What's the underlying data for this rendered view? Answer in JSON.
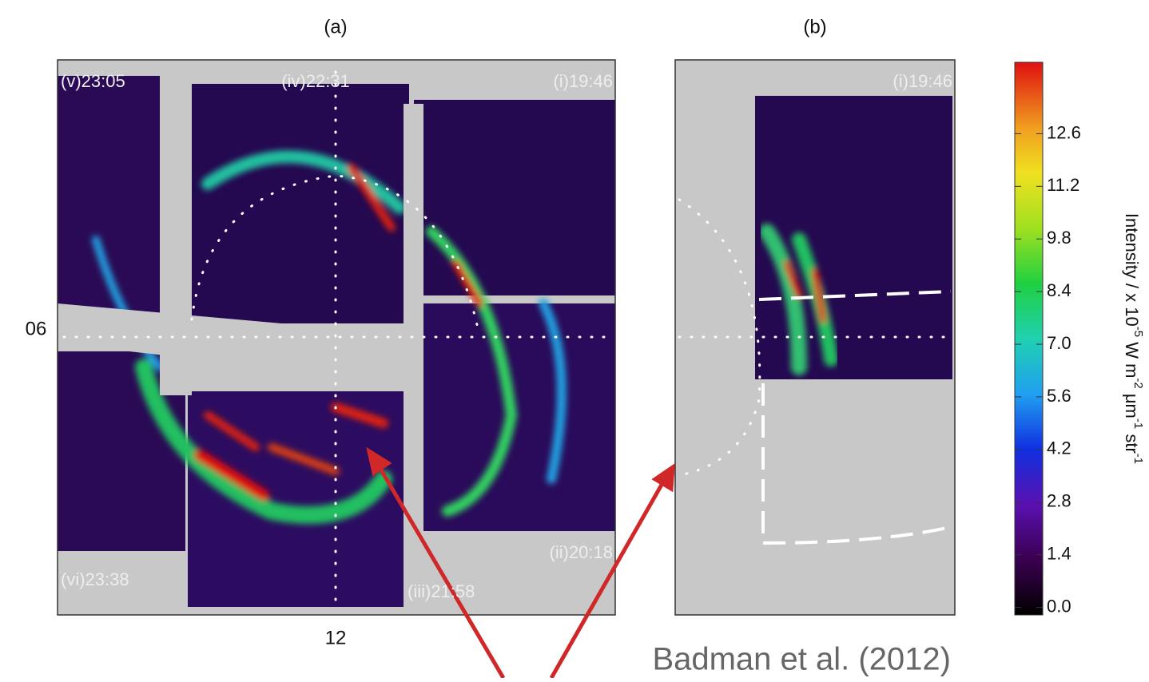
{
  "panels": [
    {
      "title": "(a)",
      "labels": [
        "(v)23:05",
        "(iv)22:31",
        "(i)19:46",
        "(ii)20:18",
        "(vi)23:38",
        "(iii)21:58"
      ],
      "y_label": "06",
      "x_label": "12"
    },
    {
      "title": "(b)",
      "labels": [
        "(i)19:46"
      ]
    }
  ],
  "colorbar": {
    "lim": [
      -0.2,
      14.5
    ],
    "ticks": [
      {
        "value": 0,
        "label": "0.0"
      },
      {
        "value": 1.4,
        "label": "1.4"
      },
      {
        "value": 2.8,
        "label": "2.8"
      },
      {
        "value": 4.2,
        "label": "4.2"
      },
      {
        "value": 5.6,
        "label": "5.6"
      },
      {
        "value": 7,
        "label": "7.0"
      },
      {
        "value": 8.4,
        "label": "8.4"
      },
      {
        "value": 9.8,
        "label": "9.8"
      },
      {
        "value": 11.2,
        "label": "11.2"
      },
      {
        "value": 12.6,
        "label": "12.6"
      }
    ],
    "label_parts": [
      "Intensity / x 10",
      "-5",
      " W m",
      "-2",
      " μm",
      "-1",
      " str",
      "-1"
    ]
  },
  "citation": "Badman et al. (2012)"
}
